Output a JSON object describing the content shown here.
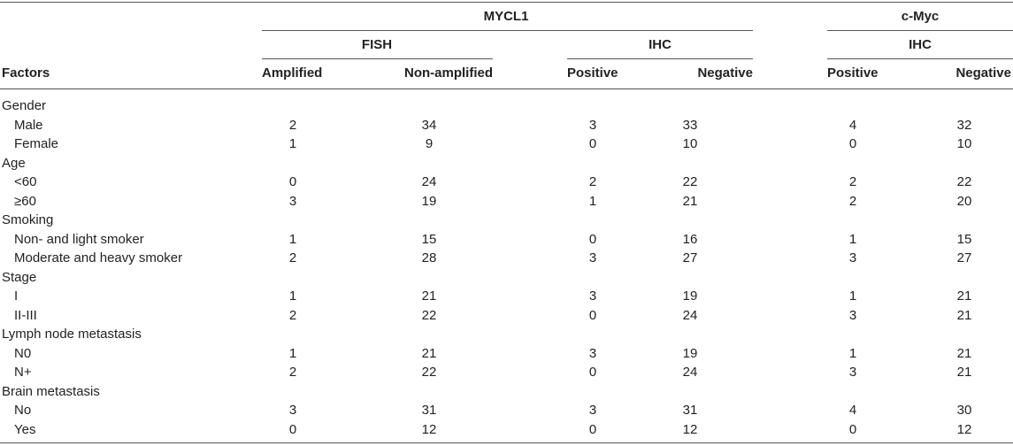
{
  "header": {
    "group1": "MYCL1",
    "group2": "c-Myc",
    "sub_fish": "FISH",
    "sub_ihc1": "IHC",
    "sub_ihc2": "IHC",
    "factors": "Factors",
    "cols": [
      "Amplified",
      "Non-amplified",
      "Positive",
      "Negative",
      "Positive",
      "Negative"
    ]
  },
  "rows": [
    {
      "label": "Gender",
      "category": true,
      "values": []
    },
    {
      "label": "Male",
      "category": false,
      "values": [
        "2",
        "34",
        "3",
        "33",
        "4",
        "32"
      ]
    },
    {
      "label": "Female",
      "category": false,
      "values": [
        "1",
        "9",
        "0",
        "10",
        "0",
        "10"
      ]
    },
    {
      "label": "Age",
      "category": true,
      "values": []
    },
    {
      "label": "<60",
      "category": false,
      "values": [
        "0",
        "24",
        "2",
        "22",
        "2",
        "22"
      ]
    },
    {
      "label": "≥60",
      "category": false,
      "values": [
        "3",
        "19",
        "1",
        "21",
        "2",
        "20"
      ]
    },
    {
      "label": "Smoking",
      "category": true,
      "values": []
    },
    {
      "label": "Non- and light smoker",
      "category": false,
      "values": [
        "1",
        "15",
        "0",
        "16",
        "1",
        "15"
      ]
    },
    {
      "label": "Moderate and heavy smoker",
      "category": false,
      "values": [
        "2",
        "28",
        "3",
        "27",
        "3",
        "27"
      ]
    },
    {
      "label": "Stage",
      "category": true,
      "values": []
    },
    {
      "label": "I",
      "category": false,
      "values": [
        "1",
        "21",
        "3",
        "19",
        "1",
        "21"
      ]
    },
    {
      "label": "II-III",
      "category": false,
      "values": [
        "2",
        "22",
        "0",
        "24",
        "3",
        "21"
      ]
    },
    {
      "label": "Lymph node metastasis",
      "category": true,
      "values": []
    },
    {
      "label": "N0",
      "category": false,
      "values": [
        "1",
        "21",
        "3",
        "19",
        "1",
        "21"
      ]
    },
    {
      "label": "N+",
      "category": false,
      "values": [
        "2",
        "22",
        "0",
        "24",
        "3",
        "21"
      ]
    },
    {
      "label": "Brain metastasis",
      "category": true,
      "values": []
    },
    {
      "label": "No",
      "category": false,
      "values": [
        "3",
        "31",
        "3",
        "31",
        "4",
        "30"
      ]
    },
    {
      "label": "Yes",
      "category": false,
      "values": [
        "0",
        "12",
        "0",
        "12",
        "0",
        "12"
      ]
    }
  ]
}
